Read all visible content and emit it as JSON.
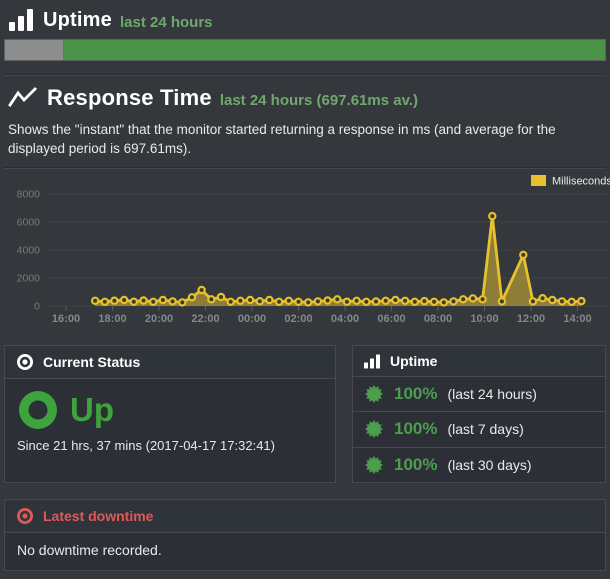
{
  "uptime_section": {
    "title": "Uptime",
    "subtitle": "last 24 hours",
    "bar": {
      "unknown_pct": 9.8,
      "up_pct": 90.2,
      "unknown_color": "#8d8d8d",
      "up_color": "#4a9347"
    }
  },
  "response_section": {
    "title": "Response Time",
    "subtitle": "last 24 hours (697.61ms av.)",
    "description": "Shows the \"instant\" that the monitor started returning a response in ms (and average for the displayed period is 697.61ms)."
  },
  "chart_data": {
    "type": "area",
    "title": "",
    "ylabel": "",
    "xlabel": "",
    "legend": [
      "Milliseconds"
    ],
    "legend_position": "top-right",
    "grid": true,
    "ylim": [
      0,
      8000
    ],
    "yticks": [
      0,
      2000,
      4000,
      6000,
      8000
    ],
    "xticks": [
      "16:00",
      "18:00",
      "20:00",
      "22:00",
      "00:00",
      "02:00",
      "04:00",
      "06:00",
      "08:00",
      "10:00",
      "12:00",
      "14:00"
    ],
    "average_ms": 697.61,
    "series": [
      {
        "name": "Milliseconds",
        "color": "#e7c22f",
        "fill_opacity": 0.5,
        "point_fill": "#3f3a22",
        "points": [
          {
            "time": "17:15",
            "ms": 370
          },
          {
            "time": "17:40",
            "ms": 300
          },
          {
            "time": "18:05",
            "ms": 380
          },
          {
            "time": "18:30",
            "ms": 430
          },
          {
            "time": "18:55",
            "ms": 310
          },
          {
            "time": "19:20",
            "ms": 390
          },
          {
            "time": "19:45",
            "ms": 300
          },
          {
            "time": "20:10",
            "ms": 430
          },
          {
            "time": "20:35",
            "ms": 330
          },
          {
            "time": "21:00",
            "ms": 260
          },
          {
            "time": "21:25",
            "ms": 620
          },
          {
            "time": "21:50",
            "ms": 1140
          },
          {
            "time": "22:15",
            "ms": 480
          },
          {
            "time": "22:40",
            "ms": 640
          },
          {
            "time": "23:05",
            "ms": 300
          },
          {
            "time": "23:30",
            "ms": 370
          },
          {
            "time": "23:55",
            "ms": 430
          },
          {
            "time": "00:20",
            "ms": 340
          },
          {
            "time": "00:45",
            "ms": 430
          },
          {
            "time": "01:10",
            "ms": 300
          },
          {
            "time": "01:35",
            "ms": 370
          },
          {
            "time": "02:00",
            "ms": 300
          },
          {
            "time": "02:25",
            "ms": 260
          },
          {
            "time": "02:50",
            "ms": 330
          },
          {
            "time": "03:15",
            "ms": 390
          },
          {
            "time": "03:40",
            "ms": 480
          },
          {
            "time": "04:05",
            "ms": 310
          },
          {
            "time": "04:30",
            "ms": 370
          },
          {
            "time": "04:55",
            "ms": 300
          },
          {
            "time": "05:20",
            "ms": 320
          },
          {
            "time": "05:45",
            "ms": 370
          },
          {
            "time": "06:10",
            "ms": 430
          },
          {
            "time": "06:35",
            "ms": 370
          },
          {
            "time": "07:00",
            "ms": 300
          },
          {
            "time": "07:25",
            "ms": 350
          },
          {
            "time": "07:50",
            "ms": 300
          },
          {
            "time": "08:15",
            "ms": 260
          },
          {
            "time": "08:40",
            "ms": 330
          },
          {
            "time": "09:05",
            "ms": 480
          },
          {
            "time": "09:30",
            "ms": 540
          },
          {
            "time": "09:55",
            "ms": 480
          },
          {
            "time": "10:20",
            "ms": 6420
          },
          {
            "time": "10:45",
            "ms": 330
          },
          {
            "time": "11:40",
            "ms": 3650
          },
          {
            "time": "12:05",
            "ms": 330
          },
          {
            "time": "12:30",
            "ms": 560
          },
          {
            "time": "12:55",
            "ms": 430
          },
          {
            "time": "13:20",
            "ms": 330
          },
          {
            "time": "13:45",
            "ms": 300
          },
          {
            "time": "14:10",
            "ms": 350
          }
        ]
      }
    ]
  },
  "current_status": {
    "header": "Current Status",
    "status": "Up",
    "since": "Since 21 hrs, 37 mins (2017-04-17 17:32:41)"
  },
  "uptime_panel": {
    "header": "Uptime",
    "rows": [
      {
        "value": "100%",
        "label": "(last 24 hours)"
      },
      {
        "value": "100%",
        "label": "(last 7 days)"
      },
      {
        "value": "100%",
        "label": "(last 30 days)"
      }
    ]
  },
  "downtime_panel": {
    "header": "Latest downtime",
    "body": "No downtime recorded."
  },
  "colors": {
    "page_bg": "#34383c",
    "panel_bg": "#2c3036",
    "panel_border": "#46494e",
    "subtitle_green": "#6fa86f",
    "up_green": "#3da43d",
    "percent_green": "#4c9e4c",
    "bar_up_green": "#4a9347",
    "bar_unknown_gray": "#8d8d8d",
    "downtime_red": "#dd5b57",
    "chart_yellow": "#e7c22f",
    "grid_line": "#3e4247",
    "axis_text": "#85888b"
  }
}
